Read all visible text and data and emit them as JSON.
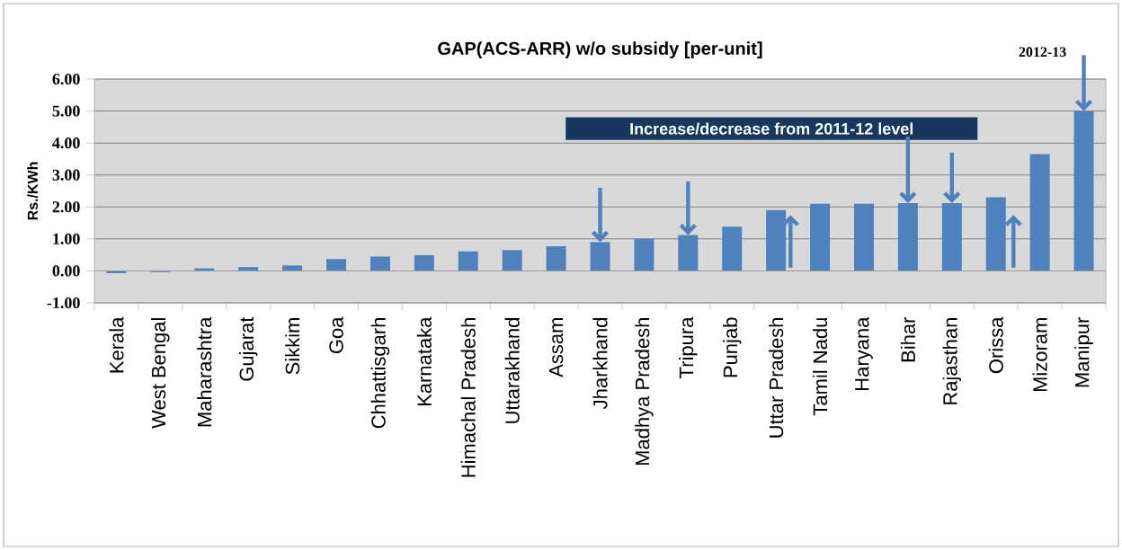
{
  "chart_data": {
    "type": "bar",
    "title": "GAP(ACS-ARR) w/o subsidy [per-unit]",
    "ylabel": "Rs./KWh",
    "categories": [
      "Kerala",
      "West Bengal",
      "Maharashtra",
      "Gujarat",
      "Sikkim",
      "Goa",
      "Chhattisgarh",
      "Karnataka",
      "Himachal Pradesh",
      "Uttarakhand",
      "Assam",
      "Jharkhand",
      "Madhya Pradesh",
      "Tripura",
      "Punjab",
      "Uttar Pradesh",
      "Tamil Nadu",
      "Haryana",
      "Bihar",
      "Rajasthan",
      "Orissa",
      "Mizoram",
      "Manipur"
    ],
    "values": [
      -0.07,
      -0.04,
      0.08,
      0.12,
      0.17,
      0.37,
      0.45,
      0.49,
      0.61,
      0.65,
      0.77,
      0.9,
      1.0,
      1.12,
      1.38,
      1.9,
      2.1,
      2.1,
      2.12,
      2.12,
      2.3,
      3.65,
      5.0
    ],
    "color": "#4f81bd",
    "ylim": [
      -1,
      6
    ],
    "yticks": [
      {
        "value": -1,
        "label": "-1.00"
      },
      {
        "value": 0,
        "label": "0.00"
      },
      {
        "value": 1,
        "label": "1.00"
      },
      {
        "value": 2,
        "label": "2.00"
      },
      {
        "value": 3,
        "label": "3.00"
      },
      {
        "value": 4,
        "label": "4.00"
      },
      {
        "value": 5,
        "label": "5.00"
      },
      {
        "value": 6,
        "label": "6.00"
      }
    ],
    "grid": "y",
    "annotations": [
      {
        "text": "2012-13",
        "x": "Manipur",
        "y": 5.0
      },
      "Increase/decrease from 2011-12 level"
    ]
  }
}
